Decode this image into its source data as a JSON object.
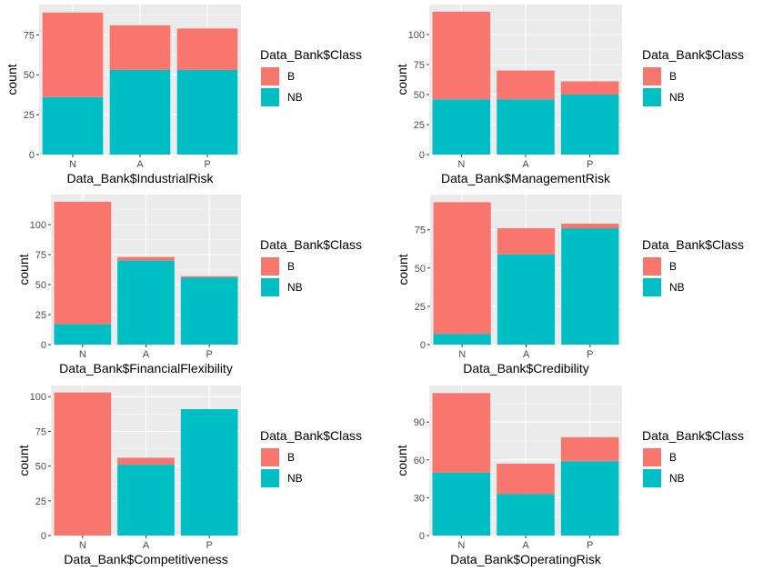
{
  "figure_title": "",
  "colors": {
    "B": "#F8766D",
    "NB": "#00BFC4",
    "panel_bg": "#EBEBEB",
    "grid_major": "#FFFFFF",
    "tick_text": "#4D4D4D"
  },
  "chart_data": [
    {
      "type": "bar",
      "stacked": true,
      "xlabel": "Data_Bank$IndustrialRisk",
      "ylabel": "count",
      "categories": [
        "N",
        "A",
        "P"
      ],
      "ylim": [
        0,
        94
      ],
      "yticks": [
        0,
        25,
        50,
        75
      ],
      "legend": {
        "title": "Data_Bank$Class",
        "entries": [
          "B",
          "NB"
        ],
        "position": "right"
      },
      "series": [
        {
          "name": "NB",
          "values": [
            36,
            53,
            53
          ]
        },
        {
          "name": "B",
          "values": [
            53,
            28,
            26
          ]
        }
      ]
    },
    {
      "type": "bar",
      "stacked": true,
      "xlabel": "Data_Bank$ManagementRisk",
      "ylabel": "count",
      "categories": [
        "N",
        "A",
        "P"
      ],
      "ylim": [
        0,
        125
      ],
      "yticks": [
        0,
        25,
        50,
        75,
        100
      ],
      "legend": {
        "title": "Data_Bank$Class",
        "entries": [
          "B",
          "NB"
        ],
        "position": "right"
      },
      "series": [
        {
          "name": "NB",
          "values": [
            46,
            46,
            50
          ]
        },
        {
          "name": "B",
          "values": [
            73,
            24,
            11
          ]
        }
      ]
    },
    {
      "type": "bar",
      "stacked": true,
      "xlabel": "Data_Bank$FinancialFlexibility",
      "ylabel": "count",
      "categories": [
        "N",
        "A",
        "P"
      ],
      "ylim": [
        0,
        125
      ],
      "yticks": [
        0,
        25,
        50,
        75,
        100
      ],
      "legend": {
        "title": "Data_Bank$Class",
        "entries": [
          "B",
          "NB"
        ],
        "position": "right"
      },
      "series": [
        {
          "name": "NB",
          "values": [
            17,
            70,
            56
          ]
        },
        {
          "name": "B",
          "values": [
            102,
            3,
            1
          ]
        }
      ]
    },
    {
      "type": "bar",
      "stacked": true,
      "xlabel": "Data_Bank$Credibility",
      "ylabel": "count",
      "categories": [
        "N",
        "A",
        "P"
      ],
      "ylim": [
        0,
        98
      ],
      "yticks": [
        0,
        25,
        50,
        75
      ],
      "legend": {
        "title": "Data_Bank$Class",
        "entries": [
          "B",
          "NB"
        ],
        "position": "right"
      },
      "series": [
        {
          "name": "NB",
          "values": [
            7,
            59,
            76
          ]
        },
        {
          "name": "B",
          "values": [
            86,
            17,
            3
          ]
        }
      ]
    },
    {
      "type": "bar",
      "stacked": true,
      "xlabel": "Data_Bank$Competitiveness",
      "ylabel": "count",
      "categories": [
        "N",
        "A",
        "P"
      ],
      "ylim": [
        0,
        108
      ],
      "yticks": [
        0,
        25,
        50,
        75,
        100
      ],
      "legend": {
        "title": "Data_Bank$Class",
        "entries": [
          "B",
          "NB"
        ],
        "position": "right"
      },
      "series": [
        {
          "name": "NB",
          "values": [
            0,
            51,
            91
          ]
        },
        {
          "name": "B",
          "values": [
            103,
            5,
            0
          ]
        }
      ]
    },
    {
      "type": "bar",
      "stacked": true,
      "xlabel": "Data_Bank$OperatingRisk",
      "ylabel": "count",
      "categories": [
        "N",
        "A",
        "P"
      ],
      "ylim": [
        0,
        119
      ],
      "yticks": [
        0,
        30,
        60,
        90
      ],
      "legend": {
        "title": "Data_Bank$Class",
        "entries": [
          "B",
          "NB"
        ],
        "position": "right"
      },
      "series": [
        {
          "name": "NB",
          "values": [
            50,
            33,
            59
          ]
        },
        {
          "name": "B",
          "values": [
            63,
            24,
            19
          ]
        }
      ]
    }
  ]
}
